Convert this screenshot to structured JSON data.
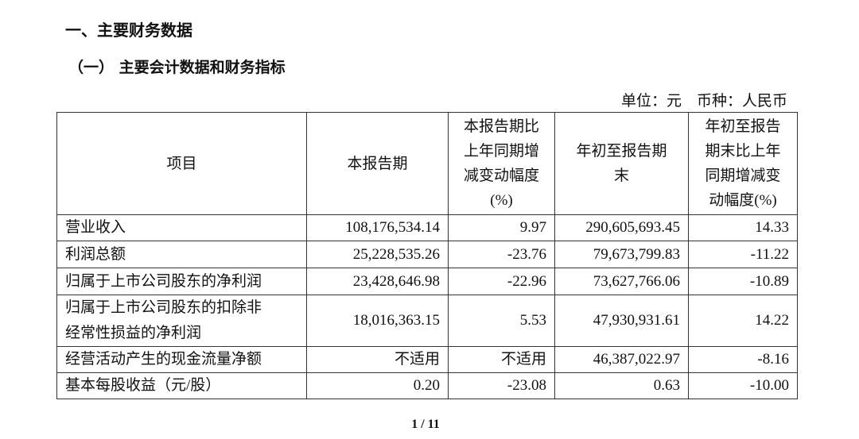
{
  "section_title": "一、主要财务数据",
  "subsection_title": "（一） 主要会计数据和财务指标",
  "unit_note": "单位：元　币种：人民币",
  "table": {
    "header": [
      [
        "项目"
      ],
      [
        "本报告期"
      ],
      [
        "本报告期比",
        "上年同期增",
        "减变动幅度",
        "(%)"
      ],
      [
        "年初至报告期",
        "末"
      ],
      [
        "年初至报告",
        "期末比上年",
        "同期增减变",
        "动幅度(%)"
      ]
    ],
    "rows": [
      [
        "营业收入",
        "108,176,534.14",
        "9.97",
        "290,605,693.45",
        "14.33"
      ],
      [
        "利润总额",
        "25,228,535.26",
        "-23.76",
        "79,673,799.83",
        "-11.22"
      ],
      [
        "归属于上市公司股东的净利润",
        "23,428,646.98",
        "-22.96",
        "73,627,766.06",
        "-10.89"
      ],
      [
        [
          "归属于上市公司股东的扣除非",
          "经常性损益的净利润"
        ],
        "18,016,363.15",
        "5.53",
        "47,930,931.61",
        "14.22"
      ],
      [
        "经营活动产生的现金流量净额",
        "不适用",
        "不适用",
        "46,387,022.97",
        "-8.16"
      ],
      [
        "基本每股收益（元/股）",
        "0.20",
        "-23.08",
        "0.63",
        "-10.00"
      ]
    ]
  },
  "page_number": "1 / 11"
}
